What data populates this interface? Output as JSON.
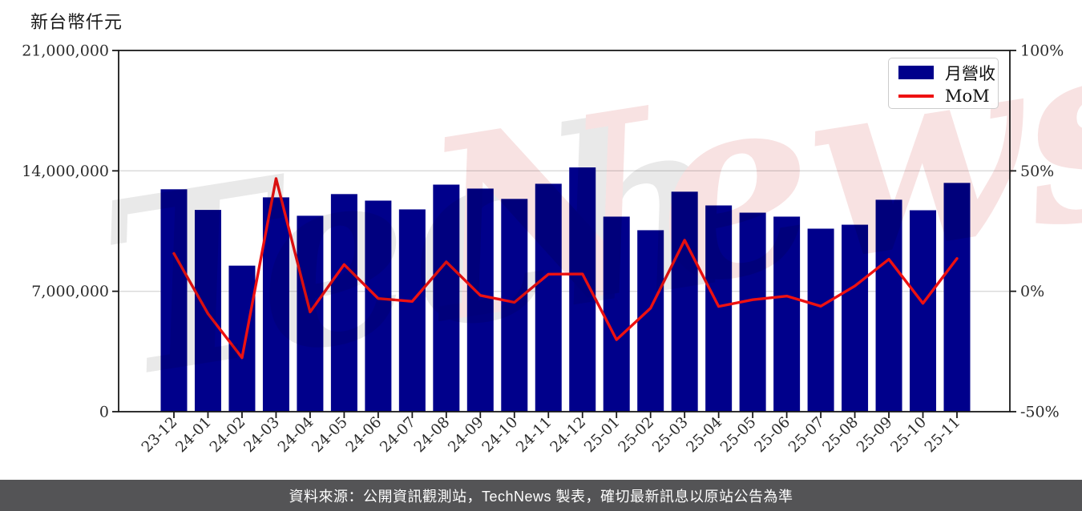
{
  "page": {
    "footer": "資料來源：公開資訊觀測站，TechNews 製表，確切最新訊息以原站公告為準",
    "watermark": {
      "part1": "Tech",
      "part2": "News"
    }
  },
  "colors": {
    "bar": "#00008B",
    "line": "#EE1111",
    "grid": "#d9d9d9",
    "spine": "#1a1a1a",
    "tick_label": "#2b2b2b",
    "footer_bg": "#545456",
    "footer_text": "#ffffff",
    "watermark_gray": "#e9e9e9",
    "watermark_pink": "#f8e2e2",
    "legend_border": "#cccccc"
  },
  "legend": {
    "position": "top-right"
  },
  "chart_data": {
    "type": "bar+line",
    "title": "",
    "categories": [
      "23-12",
      "24-01",
      "24-02",
      "24-03",
      "24-04",
      "24-05",
      "24-06",
      "24-07",
      "24-08",
      "24-09",
      "24-10",
      "24-11",
      "24-12",
      "25-01",
      "25-02",
      "25-03",
      "25-04",
      "25-05",
      "25-06",
      "25-07",
      "25-08",
      "25-09",
      "25-10",
      "25-11"
    ],
    "series": [
      {
        "name": "月營收",
        "type": "bar",
        "axis": "left",
        "unit": "新台幣仟元",
        "values": [
          12930000,
          11730000,
          8490000,
          12460000,
          11390000,
          12650000,
          12270000,
          11760000,
          13200000,
          12970000,
          12370000,
          13250000,
          14200000,
          11340000,
          10550000,
          12790000,
          11990000,
          11570000,
          11340000,
          10640000,
          10870000,
          12320000,
          11710000,
          13300000
        ]
      },
      {
        "name": "MoM",
        "type": "line",
        "axis": "right",
        "unit": "%",
        "values": [
          15.7,
          -9.3,
          -27.6,
          46.8,
          -8.6,
          11.1,
          -3.0,
          -4.2,
          12.2,
          -1.7,
          -4.6,
          7.1,
          7.2,
          -20.1,
          -7.0,
          21.2,
          -6.3,
          -3.5,
          -2.0,
          -6.2,
          2.2,
          13.3,
          -5.0,
          13.6
        ]
      }
    ],
    "left_axis": {
      "title": "新台幣仟元",
      "range": [
        0,
        21000000
      ],
      "ticks": [
        {
          "value": 0,
          "label": "0"
        },
        {
          "value": 7000000,
          "label": "7,000,000"
        },
        {
          "value": 14000000,
          "label": "14,000,000"
        },
        {
          "value": 21000000,
          "label": "21,000,000"
        }
      ]
    },
    "right_axis": {
      "range": [
        -50,
        100
      ],
      "ticks": [
        {
          "value": -50,
          "label": "-50%"
        },
        {
          "value": 0,
          "label": "0%"
        },
        {
          "value": 50,
          "label": "50%"
        },
        {
          "value": 100,
          "label": "100%"
        }
      ]
    },
    "grid": true,
    "legend_position": "top-right"
  }
}
